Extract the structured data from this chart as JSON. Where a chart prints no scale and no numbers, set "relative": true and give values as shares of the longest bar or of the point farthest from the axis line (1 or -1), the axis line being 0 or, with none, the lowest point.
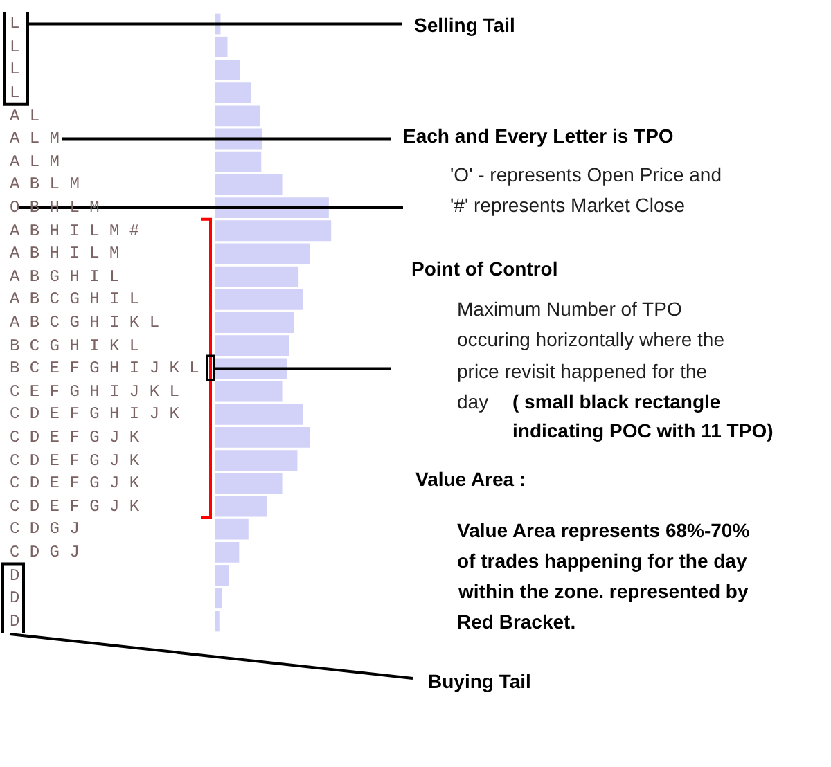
{
  "chart_data": {
    "type": "bar",
    "orientation": "horizontal",
    "relative": true,
    "color": "#d2d2f9",
    "categories": [
      "L",
      "L",
      "L",
      "L",
      "A L",
      "A L M",
      "A L M",
      "A B L M",
      "O B H L M",
      "A B H I L M #",
      "A B H I L M",
      "A B G H I L",
      "A B C G H I L",
      "A B C G H I K L",
      "B C G H I K L",
      "B C E F G H I J K L",
      "C E F G H I J K L",
      "C D E F G H I J K",
      "C D E F G J K",
      "C D E F G J K",
      "C D E F G J K",
      "C D E F G J K",
      "C D G J",
      "C D G J",
      "D",
      "D",
      "D"
    ],
    "values": [
      0.05,
      0.11,
      0.22,
      0.31,
      0.39,
      0.41,
      0.4,
      0.58,
      0.98,
      1,
      0.82,
      0.72,
      0.76,
      0.68,
      0.64,
      0.62,
      0.58,
      0.76,
      0.82,
      0.71,
      0.58,
      0.45,
      0.29,
      0.21,
      0.12,
      0.06,
      0.04
    ],
    "annotations": [
      "Selling Tail",
      "Each and Every Letter is TPO",
      "'O' - represents Open Price and",
      "'#' represents Market Close",
      "Point of Control",
      "Maximum Number of TPO",
      "occuring horizontally where the",
      "price revisit happened for the",
      "day",
      "( small black rectangle",
      "indicating POC with 11 TPO)",
      "Value Area :",
      "Value Area represents 68%-70%",
      "of trades happening for the day",
      "within the zone. represented by",
      "Red Bracket.",
      "Buying Tail"
    ]
  }
}
